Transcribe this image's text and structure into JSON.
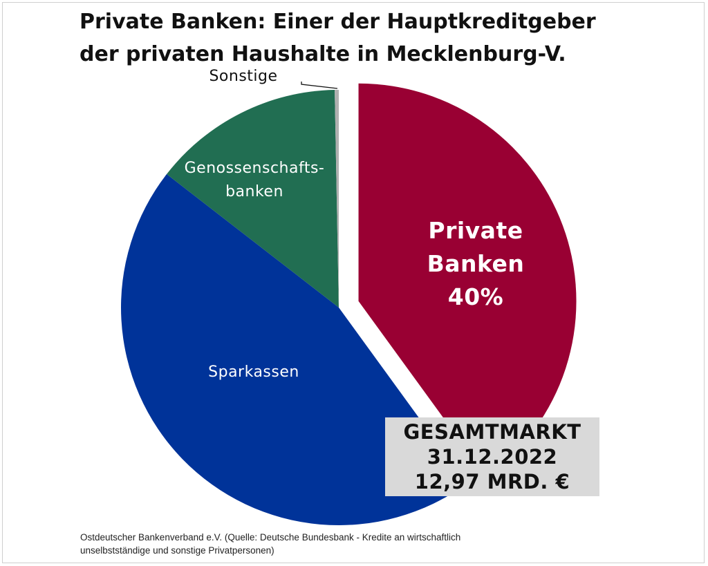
{
  "title_lines": [
    "Private Banken: Einer der Hauptkreditgeber",
    "der privaten Haushalte in Mecklenburg-V."
  ],
  "chart_data": {
    "type": "pie",
    "title": "Private Banken: Einer der Hauptkreditgeber der privaten Haushalte in Mecklenburg-V.",
    "slices": [
      {
        "name": "Private Banken",
        "label_lines": [
          "Private",
          "Banken",
          "40%"
        ],
        "value": 40,
        "color": "#990033",
        "exploded": true
      },
      {
        "name": "Sparkassen",
        "label_lines": [
          "Sparkassen"
        ],
        "value": 45.5,
        "color": "#003399"
      },
      {
        "name": "Genossenschaftsbanken",
        "label_lines": [
          "Genossenschafts-",
          "banken"
        ],
        "value": 14.2,
        "color": "#216e52"
      },
      {
        "name": "Sonstige",
        "label_lines": [
          "Sonstige"
        ],
        "value": 0.3,
        "color": "#b0b0b0"
      }
    ],
    "start_angle_deg": 0,
    "direction": "clockwise"
  },
  "total_box": {
    "lines": [
      "GESAMTMARKT",
      "31.12.2022",
      "12,97 MRD. €"
    ]
  },
  "footer_lines": [
    "Ostdeutscher Bankenverband e.V.  (Quelle: Deutsche Bundesbank - Kredite an wirtschaftlich",
    "unselbstständige und sonstige Privatpersonen)"
  ]
}
